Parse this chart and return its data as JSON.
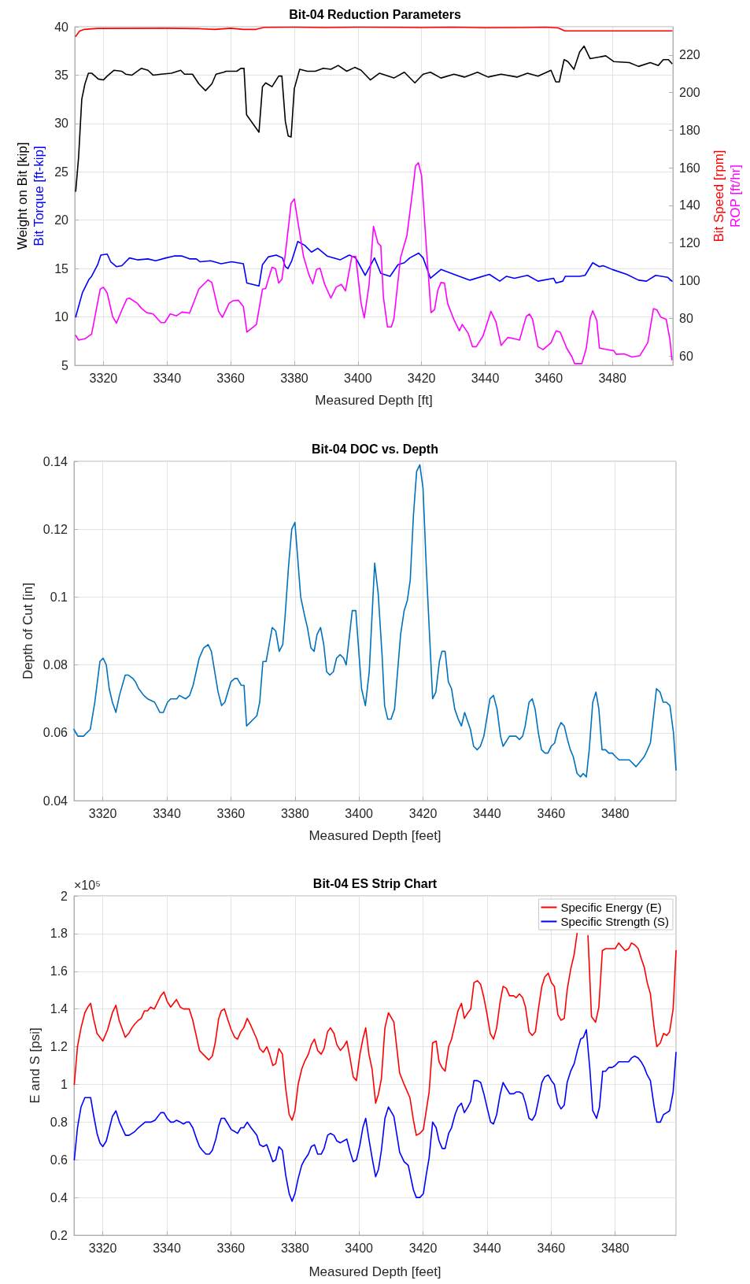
{
  "chart_data": [
    {
      "type": "line",
      "title": "Bit-04 Reduction Parameters",
      "xlabel": "Measured Depth [ft]",
      "ylabel": "Weight on Bit [kip]\nBit Torque [ft-kip]",
      "y2label": "Bit Speed [rpm]\nROP [ft/hr]",
      "xlim": [
        3311,
        3499
      ],
      "xticks": [
        3320,
        3340,
        3360,
        3380,
        3400,
        3420,
        3440,
        3460,
        3480
      ],
      "ylim": [
        5,
        40
      ],
      "yticks": [
        5,
        10,
        15,
        20,
        25,
        30,
        35,
        40
      ],
      "y2lim": [
        55,
        235
      ],
      "y2ticks": [
        60,
        80,
        100,
        120,
        140,
        160,
        180,
        200,
        220
      ],
      "grid": true,
      "marker": "none",
      "line_style": "solid",
      "series": [
        {
          "color": "#000000",
          "x": [
            3311.3,
            3312.2,
            3313.2,
            3314.2,
            3315.3,
            3316.3,
            3318.4,
            3320,
            3321.2,
            3323.3,
            3325.8,
            3327,
            3329,
            3331.9,
            3334,
            3335.6,
            3338.1,
            3341.4,
            3344.3,
            3345.5,
            3348,
            3350,
            3352.1,
            3354.1,
            3355.4,
            3357.8,
            3358.6,
            3361.9,
            3363.2,
            3364.2,
            3365,
            3368.9,
            3370,
            3371,
            3373,
            3375.1,
            3376.1,
            3377.2,
            3378.1,
            3379,
            3380,
            3381.7,
            3384.1,
            3386.6,
            3389.1,
            3391.5,
            3393.8,
            3396.5,
            3399,
            3401,
            3403.9,
            3406.8,
            3411.3,
            3414.6,
            3417.9,
            3420.5,
            3422.8,
            3426.1,
            3430.2,
            3433.5,
            3437.6,
            3440.9,
            3445,
            3450,
            3453.3,
            3456.6,
            3460.7,
            3462.2,
            3463.3,
            3464.8,
            3466,
            3467.9,
            3469.7,
            3471.1,
            3473,
            3474.7,
            3477.9,
            3480.4,
            3485.3,
            3488.2,
            3491.9,
            3494.4,
            3496,
            3497.6,
            3498.7
          ],
          "values": [
            23.0,
            26.5,
            32.5,
            34.1,
            35.2,
            35.2,
            34.6,
            34.5,
            34.9,
            35.5,
            35.4,
            35.1,
            35.0,
            35.7,
            35.5,
            35.0,
            35.1,
            35.2,
            35.5,
            35.1,
            35.1,
            34.1,
            33.4,
            34.1,
            35.1,
            35.3,
            35.4,
            35.4,
            35.7,
            35.7,
            30.9,
            29.1,
            33.8,
            34.2,
            33.8,
            34.9,
            34.9,
            30.2,
            28.7,
            28.6,
            33.6,
            35.6,
            35.4,
            35.4,
            35.7,
            35.6,
            36.0,
            35.4,
            35.8,
            35.5,
            34.5,
            35.2,
            34.7,
            35.3,
            34.2,
            35.1,
            35.3,
            34.7,
            35.1,
            34.8,
            35.3,
            34.8,
            35.1,
            34.8,
            35.2,
            34.9,
            35.5,
            34.3,
            34.3,
            36.6,
            36.4,
            35.6,
            37.4,
            38.0,
            36.7,
            36.8,
            37.0,
            36.4,
            36.3,
            35.9,
            36.3,
            36.0,
            36.6,
            36.6,
            36.2
          ]
        },
        {
          "color": "#0000ff",
          "x": [
            3311.3,
            3313.4,
            3315.5,
            3316.3,
            3318.2,
            3319.2,
            3321.2,
            3322.3,
            3324.1,
            3325.8,
            3328.2,
            3330.7,
            3334,
            3336.4,
            3339.7,
            3342.2,
            3344.7,
            3347.1,
            3349.2,
            3350.4,
            3353.7,
            3357,
            3360.3,
            3364,
            3365.1,
            3368.9,
            3370,
            3371.8,
            3374.3,
            3376.3,
            3377.2,
            3378,
            3379.2,
            3381.1,
            3383.3,
            3385.4,
            3387.4,
            3390.3,
            3394.4,
            3397.3,
            3399.3,
            3402.3,
            3405.2,
            3407.2,
            3410.1,
            3412.6,
            3414.6,
            3416.3,
            3419.1,
            3420.5,
            3422.8,
            3426.1,
            3430.2,
            3435.2,
            3441.3,
            3444.6,
            3446.7,
            3449.2,
            3453.3,
            3456.6,
            3461.5,
            3462.3,
            3464.4,
            3465.2,
            3469.7,
            3471.4,
            3473.8,
            3475.9,
            3477.1,
            3480,
            3484.5,
            3488.2,
            3490.7,
            3493.6,
            3497.3,
            3498.7
          ],
          "values": [
            10.0,
            12.5,
            13.9,
            14.2,
            15.4,
            16.4,
            16.5,
            15.7,
            15.2,
            15.3,
            16.1,
            15.9,
            16.0,
            15.8,
            16.1,
            16.3,
            16.3,
            16.0,
            16.0,
            15.7,
            15.8,
            15.5,
            15.7,
            15.5,
            13.5,
            13.2,
            15.4,
            16.2,
            16.4,
            16.1,
            15.2,
            15.0,
            15.8,
            17.8,
            17.4,
            16.7,
            17.1,
            16.3,
            15.9,
            16.4,
            16.1,
            14.3,
            16.1,
            14.5,
            14.2,
            15.4,
            15.6,
            16.1,
            16.6,
            16.1,
            14.0,
            14.9,
            14.4,
            13.8,
            14.4,
            13.7,
            14.2,
            14.0,
            14.3,
            13.7,
            14.0,
            13.5,
            13.7,
            14.2,
            14.2,
            14.3,
            15.6,
            15.2,
            15.3,
            14.9,
            14.4,
            13.8,
            13.7,
            14.3,
            14.1,
            13.7
          ]
        },
        {
          "color": "#ff0000",
          "axis": "y2",
          "x": [
            3311.3,
            3312.5,
            3314,
            3318,
            3340,
            3350,
            3355,
            3360,
            3364,
            3368,
            3370.5,
            3380,
            3390,
            3400,
            3420,
            3430,
            3440,
            3452,
            3459,
            3463,
            3465,
            3498.7
          ],
          "values": [
            229.9,
            232.7,
            233.6,
            234.1,
            234.2,
            234.0,
            233.6,
            234.2,
            233.6,
            233.6,
            234.7,
            234.8,
            234.6,
            234.8,
            234.6,
            234.8,
            234.5,
            234.6,
            234.8,
            234.4,
            232.8,
            232.8
          ]
        },
        {
          "color": "#ff00ff",
          "axis": "y2",
          "x": [
            3311.3,
            3312.2,
            3314.2,
            3316.3,
            3317.5,
            3319,
            3320,
            3321.2,
            3322.9,
            3324.1,
            3325.8,
            3327.4,
            3328.2,
            3330.7,
            3331.9,
            3333.6,
            3335.6,
            3338.1,
            3339.3,
            3341,
            3343,
            3344.7,
            3347.1,
            3350,
            3352.9,
            3354.1,
            3356.2,
            3357.4,
            3359.5,
            3360.7,
            3362.4,
            3364,
            3365.1,
            3368.1,
            3370,
            3371,
            3373,
            3374.1,
            3375.1,
            3376.1,
            3377.2,
            3379,
            3380,
            3381.3,
            3382.9,
            3384.6,
            3385.8,
            3387,
            3388.1,
            3389.5,
            3391.5,
            3393.2,
            3394.8,
            3396.1,
            3398.1,
            3399.3,
            3401,
            3402,
            3403.5,
            3404.9,
            3406.3,
            3407.2,
            3408,
            3409.3,
            3410.5,
            3411.3,
            3413.4,
            3415.4,
            3417.3,
            3418.1,
            3419,
            3420,
            3421.6,
            3423,
            3424.1,
            3425.1,
            3426.1,
            3427.2,
            3428.2,
            3430.2,
            3431.9,
            3432.8,
            3434.7,
            3436,
            3437.2,
            3439.3,
            3441.8,
            3443.4,
            3445,
            3447.1,
            3449.2,
            3450.8,
            3452.9,
            3453.9,
            3454.9,
            3456.6,
            3458.2,
            3460.7,
            3462.3,
            3463.6,
            3465.6,
            3467.3,
            3468.1,
            3470.4,
            3471.8,
            3473,
            3473.8,
            3475.1,
            3475.9,
            3477.9,
            3480.4,
            3481.2,
            3483.7,
            3486.2,
            3488.6,
            3491.1,
            3492.9,
            3494,
            3495.2,
            3496.9,
            3498.1,
            3498.7
          ],
          "values": [
            70.9,
            68.4,
            69.1,
            71.6,
            82.3,
            95.5,
            96.5,
            93.4,
            80.9,
            77.4,
            84.4,
            90.4,
            90.7,
            87.9,
            85.4,
            83.0,
            82.3,
            77.7,
            77.7,
            82.3,
            81.3,
            83.3,
            82.7,
            95.5,
            100.4,
            99.0,
            83.7,
            80.5,
            87.9,
            89.3,
            89.6,
            86.2,
            72.6,
            76.7,
            95.5,
            95.8,
            107.1,
            106.4,
            98.7,
            100.7,
            114.3,
            141.0,
            143.5,
            129.6,
            112.9,
            103.2,
            98.3,
            106.0,
            106.6,
            98.3,
            90.7,
            96.6,
            98.0,
            94.5,
            112.9,
            112.9,
            87.9,
            80.2,
            97.6,
            128.9,
            119.9,
            118.5,
            91.4,
            75.4,
            75.4,
            79.5,
            112.2,
            124.0,
            149.1,
            160.9,
            162.7,
            156.0,
            115.7,
            83.0,
            84.7,
            94.8,
            99.0,
            98.7,
            87.9,
            79.2,
            73.3,
            76.7,
            71.9,
            64.9,
            64.9,
            70.5,
            83.7,
            78.1,
            65.6,
            69.8,
            69.1,
            68.4,
            80.9,
            82.3,
            79.5,
            64.9,
            63.3,
            67.0,
            73.3,
            72.6,
            64.2,
            59.4,
            55.9,
            55.9,
            64.2,
            80.2,
            84.0,
            78.8,
            64.2,
            63.5,
            62.8,
            60.8,
            61.1,
            59.4,
            60.1,
            67.0,
            85.1,
            84.4,
            80.6,
            79.5,
            68.4,
            58.0
          ]
        }
      ]
    },
    {
      "type": "line",
      "title": "Bit-04 DOC vs. Depth",
      "xlabel": "Measured Depth [feet]",
      "ylabel": "Depth of Cut [in]",
      "xlim": [
        3311,
        3499
      ],
      "xticks": [
        3320,
        3340,
        3360,
        3380,
        3400,
        3420,
        3440,
        3460,
        3480
      ],
      "ylim": [
        0.04,
        0.14
      ],
      "yticks": [
        0.04,
        0.06,
        0.08,
        0.1,
        0.12,
        0.14
      ],
      "grid": true,
      "marker": "none",
      "line_style": "solid",
      "series": [
        {
          "color": "#0072bd",
          "x": [
            3311,
            3312.2,
            3314,
            3315,
            3316.1,
            3317.5,
            3319.1,
            3320.1,
            3321.1,
            3322,
            3323,
            3324.1,
            3325.2,
            3327,
            3328,
            3329.4,
            3330.2,
            3331.2,
            3332.8,
            3334,
            3336.2,
            3337.8,
            3338.9,
            3340.2,
            3341.2,
            3343.1,
            3343.9,
            3345.9,
            3347.1,
            3348.2,
            3350.1,
            3351.5,
            3352.9,
            3353.9,
            3356,
            3357.1,
            3358.1,
            3360,
            3361.2,
            3362,
            3363.2,
            3364.1,
            3364.9,
            3368.1,
            3369,
            3370,
            3371,
            3372.9,
            3374,
            3375.1,
            3376.2,
            3376.9,
            3378,
            3379,
            3380,
            3381.8,
            3382.9,
            3383.9,
            3385,
            3386,
            3386.9,
            3388,
            3389,
            3389.9,
            3390.9,
            3392,
            3393,
            3394.1,
            3395.2,
            3396,
            3397.9,
            3399,
            3400.8,
            3402,
            3403.2,
            3404.9,
            3406,
            3407.2,
            3408,
            3409,
            3410,
            3411.1,
            3413,
            3414.1,
            3415.1,
            3416,
            3417,
            3418,
            3419,
            3420,
            3421.1,
            3423,
            3424,
            3425.1,
            3425.9,
            3426.9,
            3427.9,
            3428.9,
            3429.9,
            3431,
            3432,
            3433,
            3434.8,
            3435.8,
            3436.9,
            3437.9,
            3439,
            3440.9,
            3442,
            3443.1,
            3444.2,
            3445,
            3447,
            3449,
            3450.1,
            3451.1,
            3451.9,
            3453.1,
            3454.1,
            3455,
            3456,
            3457,
            3458.1,
            3459,
            3460,
            3461.1,
            3462.1,
            3463.1,
            3464.1,
            3465.1,
            3466,
            3466.9,
            3468.1,
            3469.2,
            3470,
            3471,
            3471.9,
            3473,
            3474,
            3474.9,
            3475.9,
            3477,
            3478,
            3479.1,
            3480.1,
            3481.2,
            3483.1,
            3484.4,
            3485.5,
            3486.5,
            3487.4,
            3489.1,
            3490.1,
            3491,
            3492.9,
            3494,
            3495,
            3496,
            3497.1,
            3498.2,
            3499
          ],
          "values": [
            0.061,
            0.059,
            0.059,
            0.06,
            0.061,
            0.069,
            0.081,
            0.082,
            0.08,
            0.073,
            0.069,
            0.066,
            0.071,
            0.077,
            0.077,
            0.076,
            0.075,
            0.073,
            0.071,
            0.07,
            0.069,
            0.066,
            0.066,
            0.069,
            0.07,
            0.07,
            0.071,
            0.07,
            0.071,
            0.074,
            0.082,
            0.085,
            0.086,
            0.084,
            0.072,
            0.068,
            0.069,
            0.075,
            0.076,
            0.076,
            0.074,
            0.074,
            0.062,
            0.065,
            0.069,
            0.081,
            0.081,
            0.091,
            0.09,
            0.084,
            0.086,
            0.094,
            0.109,
            0.12,
            0.122,
            0.1,
            0.095,
            0.091,
            0.085,
            0.084,
            0.089,
            0.091,
            0.086,
            0.078,
            0.077,
            0.078,
            0.082,
            0.083,
            0.082,
            0.08,
            0.096,
            0.096,
            0.073,
            0.068,
            0.078,
            0.11,
            0.101,
            0.083,
            0.068,
            0.064,
            0.064,
            0.067,
            0.089,
            0.096,
            0.099,
            0.105,
            0.124,
            0.137,
            0.139,
            0.132,
            0.107,
            0.07,
            0.072,
            0.081,
            0.084,
            0.084,
            0.075,
            0.073,
            0.067,
            0.064,
            0.062,
            0.066,
            0.061,
            0.056,
            0.055,
            0.056,
            0.059,
            0.07,
            0.071,
            0.067,
            0.059,
            0.056,
            0.059,
            0.059,
            0.058,
            0.059,
            0.062,
            0.069,
            0.07,
            0.067,
            0.06,
            0.055,
            0.054,
            0.054,
            0.056,
            0.057,
            0.061,
            0.063,
            0.062,
            0.058,
            0.055,
            0.053,
            0.048,
            0.047,
            0.048,
            0.047,
            0.055,
            0.069,
            0.072,
            0.067,
            0.055,
            0.055,
            0.054,
            0.054,
            0.053,
            0.052,
            0.052,
            0.052,
            0.051,
            0.05,
            0.051,
            0.053,
            0.055,
            0.057,
            0.073,
            0.072,
            0.069,
            0.069,
            0.068,
            0.06,
            0.049
          ]
        }
      ]
    },
    {
      "type": "line",
      "title": "Bit-04 ES Strip Chart",
      "xlabel": "Measured Depth [feet]",
      "ylabel": "E and S [psi]",
      "annotations": [
        "×10⁵"
      ],
      "xlim": [
        3311,
        3499
      ],
      "xticks": [
        3320,
        3340,
        3360,
        3380,
        3400,
        3420,
        3440,
        3460,
        3480
      ],
      "ylim": [
        0.2,
        2
      ],
      "yticks": [
        0.2,
        0.4,
        0.6,
        0.8,
        1,
        1.2,
        1.4,
        1.6,
        1.8,
        2
      ],
      "grid": true,
      "legend": "top right",
      "marker": "none",
      "line_style": "solid",
      "series": [
        {
          "name": "Specific Energy (E)",
          "color": "#ff0000",
          "x": [
            3311.1,
            3312.1,
            3313.2,
            3314.4,
            3315.3,
            3316.2,
            3317.1,
            3318.2,
            3320,
            3321.5,
            3323,
            3324.1,
            3325.1,
            3327,
            3328.1,
            3329.1,
            3330,
            3331.1,
            3332,
            3333,
            3334,
            3334.9,
            3336.1,
            3338.1,
            3339.1,
            3340.1,
            3341.2,
            3343,
            3344.2,
            3345.2,
            3346.1,
            3347,
            3348.1,
            3350.2,
            3351.3,
            3353.1,
            3354.2,
            3355.1,
            3356.2,
            3357,
            3358,
            3359.1,
            3360.1,
            3361.2,
            3362.1,
            3363.1,
            3364,
            3365.1,
            3366.3,
            3368.1,
            3369,
            3370.1,
            3371.2,
            3372.1,
            3373.1,
            3374,
            3375,
            3376.1,
            3377.1,
            3378.2,
            3379.1,
            3380,
            3381,
            3382.1,
            3383,
            3384.2,
            3385.1,
            3386.1,
            3387.1,
            3388.2,
            3389.1,
            3390.2,
            3391.1,
            3392.2,
            3393.1,
            3394.2,
            3395.2,
            3396.2,
            3397.1,
            3398.2,
            3399.2,
            3400.3,
            3401.2,
            3402.1,
            3403.1,
            3404.1,
            3405.2,
            3406.1,
            3407,
            3408.1,
            3409.2,
            3410.9,
            3412.7,
            3414.1,
            3415.9,
            3417,
            3417.9,
            3419,
            3420.1,
            3421,
            3421.9,
            3423,
            3424.1,
            3425,
            3425.9,
            3426.9,
            3428,
            3428.9,
            3430,
            3430.9,
            3432,
            3432.9,
            3434,
            3434.9,
            3435.9,
            3437,
            3438,
            3439,
            3439.9,
            3441,
            3442,
            3443,
            3444,
            3445,
            3446,
            3447,
            3448.3,
            3449.1,
            3450.1,
            3451.1,
            3452,
            3453.1,
            3454.1,
            3455.1,
            3456.1,
            3457.1,
            3458,
            3459.1,
            3460.1,
            3461,
            3462.1,
            3463.1,
            3464.1,
            3465,
            3466.1,
            3467.2,
            3468.1,
            3469.8,
            3471.5,
            3472.6,
            3473.9,
            3474.9,
            3476,
            3477,
            3478,
            3480,
            3481.1,
            3482.1,
            3483.1,
            3484.2,
            3485.1,
            3486.1,
            3487.2,
            3488.1,
            3489.1,
            3490,
            3491,
            3492.1,
            3493,
            3494.1,
            3495.1,
            3496.1,
            3497,
            3498.1,
            3499
          ],
          "values": [
            1.0,
            1.2,
            1.3,
            1.38,
            1.41,
            1.43,
            1.35,
            1.27,
            1.23,
            1.29,
            1.38,
            1.42,
            1.34,
            1.25,
            1.27,
            1.3,
            1.32,
            1.34,
            1.35,
            1.39,
            1.39,
            1.41,
            1.4,
            1.47,
            1.49,
            1.44,
            1.41,
            1.45,
            1.41,
            1.4,
            1.4,
            1.4,
            1.34,
            1.18,
            1.16,
            1.13,
            1.15,
            1.22,
            1.35,
            1.39,
            1.4,
            1.34,
            1.29,
            1.25,
            1.24,
            1.28,
            1.3,
            1.35,
            1.31,
            1.24,
            1.19,
            1.17,
            1.2,
            1.16,
            1.1,
            1.11,
            1.19,
            1.16,
            0.98,
            0.84,
            0.81,
            0.86,
            1.0,
            1.08,
            1.12,
            1.16,
            1.21,
            1.24,
            1.18,
            1.16,
            1.19,
            1.28,
            1.3,
            1.27,
            1.21,
            1.18,
            1.2,
            1.23,
            1.15,
            1.04,
            1.02,
            1.16,
            1.24,
            1.3,
            1.16,
            1.08,
            0.9,
            0.95,
            1.03,
            1.3,
            1.38,
            1.33,
            1.06,
            1.0,
            0.93,
            0.81,
            0.73,
            0.74,
            0.76,
            0.86,
            0.96,
            1.22,
            1.23,
            1.12,
            1.09,
            1.07,
            1.2,
            1.24,
            1.32,
            1.39,
            1.43,
            1.35,
            1.38,
            1.4,
            1.54,
            1.55,
            1.53,
            1.46,
            1.38,
            1.27,
            1.24,
            1.3,
            1.43,
            1.52,
            1.51,
            1.47,
            1.47,
            1.46,
            1.48,
            1.46,
            1.41,
            1.28,
            1.26,
            1.28,
            1.41,
            1.52,
            1.57,
            1.59,
            1.54,
            1.52,
            1.37,
            1.34,
            1.35,
            1.5,
            1.61,
            1.69,
            1.8,
            null,
            1.79,
            1.36,
            1.33,
            1.41,
            1.71,
            1.72,
            1.72,
            1.72,
            1.75,
            1.73,
            1.71,
            1.72,
            1.75,
            1.74,
            1.72,
            1.67,
            1.62,
            1.54,
            1.48,
            1.31,
            1.2,
            1.22,
            1.27,
            1.26,
            1.28,
            1.4,
            1.71
          ]
        },
        {
          "name": "Specific Strength (S)",
          "color": "#0000ff",
          "x": [
            3311.1,
            3312.1,
            3313.2,
            3314.4,
            3315.3,
            3316.2,
            3317.1,
            3318.2,
            3319.1,
            3320,
            3321.1,
            3323,
            3324.1,
            3325.2,
            3326,
            3327.1,
            3328.2,
            3330,
            3331.1,
            3333.2,
            3335.1,
            3336.3,
            3338.1,
            3339.1,
            3340.1,
            3341.2,
            3342.1,
            3343,
            3344.2,
            3345.2,
            3346.1,
            3347,
            3348.1,
            3349.3,
            3350.2,
            3351.1,
            3352.2,
            3353.3,
            3354.2,
            3355.3,
            3356.2,
            3357,
            3358,
            3359.1,
            3360.1,
            3361.2,
            3362.1,
            3363.1,
            3364,
            3365.1,
            3366.3,
            3368.1,
            3369,
            3370.1,
            3371.2,
            3373.1,
            3374,
            3375,
            3376.1,
            3377.1,
            3378.2,
            3379.1,
            3380,
            3381,
            3382.1,
            3383,
            3384.2,
            3385.1,
            3386.1,
            3387.1,
            3388.2,
            3389.1,
            3390.2,
            3391.1,
            3392.2,
            3393.1,
            3394.2,
            3395.2,
            3396.2,
            3397.1,
            3398.2,
            3399.2,
            3400.3,
            3401.2,
            3402.1,
            3403.1,
            3404.1,
            3405.2,
            3406.1,
            3407,
            3408.1,
            3409.2,
            3410.9,
            3412.7,
            3414.1,
            3415.4,
            3417,
            3417.9,
            3419,
            3420.1,
            3421,
            3421.9,
            3423,
            3424.1,
            3425,
            3426,
            3426.9,
            3428,
            3428.9,
            3430,
            3430.9,
            3432,
            3432.9,
            3434,
            3434.9,
            3435.9,
            3437,
            3438,
            3439,
            3440.1,
            3441.1,
            3442,
            3443,
            3444,
            3445,
            3446,
            3447.1,
            3448.3,
            3449.1,
            3450.1,
            3451.1,
            3452,
            3453.1,
            3454.1,
            3455.1,
            3456.1,
            3457.1,
            3458,
            3459.1,
            3460.1,
            3461,
            3462.1,
            3463.1,
            3464.1,
            3465,
            3466.1,
            3467.2,
            3468.2,
            3469.2,
            3470.1,
            3471,
            3472.1,
            3473,
            3474.2,
            3475.1,
            3476.1,
            3477,
            3478,
            3479.1,
            3480,
            3481.1,
            3482.1,
            3483.1,
            3484.2,
            3485.1,
            3486.1,
            3487.2,
            3488.1,
            3489.1,
            3490,
            3491,
            3492.1,
            3493,
            3494.1,
            3495.1,
            3496.1,
            3497,
            3498.1,
            3499
          ],
          "values": [
            0.6,
            0.77,
            0.88,
            0.93,
            0.93,
            0.93,
            0.84,
            0.74,
            0.69,
            0.67,
            0.7,
            0.83,
            0.86,
            0.8,
            0.77,
            0.73,
            0.73,
            0.75,
            0.77,
            0.8,
            0.8,
            0.81,
            0.85,
            0.85,
            0.82,
            0.8,
            0.8,
            0.81,
            0.8,
            0.79,
            0.8,
            0.8,
            0.77,
            0.71,
            0.67,
            0.65,
            0.63,
            0.63,
            0.65,
            0.71,
            0.78,
            0.82,
            0.82,
            0.79,
            0.76,
            0.75,
            0.74,
            0.77,
            0.77,
            0.8,
            0.77,
            0.73,
            0.68,
            0.67,
            0.68,
            0.59,
            0.6,
            0.67,
            0.65,
            0.52,
            0.42,
            0.38,
            0.42,
            0.5,
            0.57,
            0.6,
            0.63,
            0.67,
            0.68,
            0.63,
            0.63,
            0.66,
            0.73,
            0.74,
            0.73,
            0.7,
            0.69,
            0.7,
            0.71,
            0.65,
            0.59,
            0.6,
            0.68,
            0.77,
            0.82,
            0.71,
            0.61,
            0.51,
            0.55,
            0.65,
            0.82,
            0.88,
            0.83,
            0.64,
            0.59,
            0.57,
            0.44,
            0.4,
            0.4,
            0.42,
            0.52,
            0.61,
            0.8,
            0.77,
            0.7,
            0.66,
            0.66,
            0.74,
            0.77,
            0.84,
            0.88,
            0.9,
            0.85,
            0.88,
            0.91,
            1.02,
            1.02,
            1.01,
            0.95,
            0.87,
            0.8,
            0.79,
            0.84,
            0.94,
            1.01,
            0.98,
            0.95,
            0.95,
            0.96,
            0.96,
            0.95,
            0.9,
            0.82,
            0.81,
            0.84,
            0.92,
            1.01,
            1.04,
            1.05,
            1.02,
            1.0,
            0.9,
            0.87,
            0.89,
            1.01,
            1.07,
            1.11,
            1.18,
            1.24,
            1.25,
            1.29,
            1.08,
            0.86,
            0.82,
            0.88,
            1.07,
            1.07,
            1.09,
            1.09,
            1.1,
            1.12,
            1.12,
            1.12,
            1.12,
            1.14,
            1.15,
            1.14,
            1.12,
            1.09,
            1.05,
            1.02,
            0.89,
            0.8,
            0.8,
            0.84,
            0.85,
            0.86,
            0.96,
            1.17
          ]
        }
      ]
    }
  ]
}
